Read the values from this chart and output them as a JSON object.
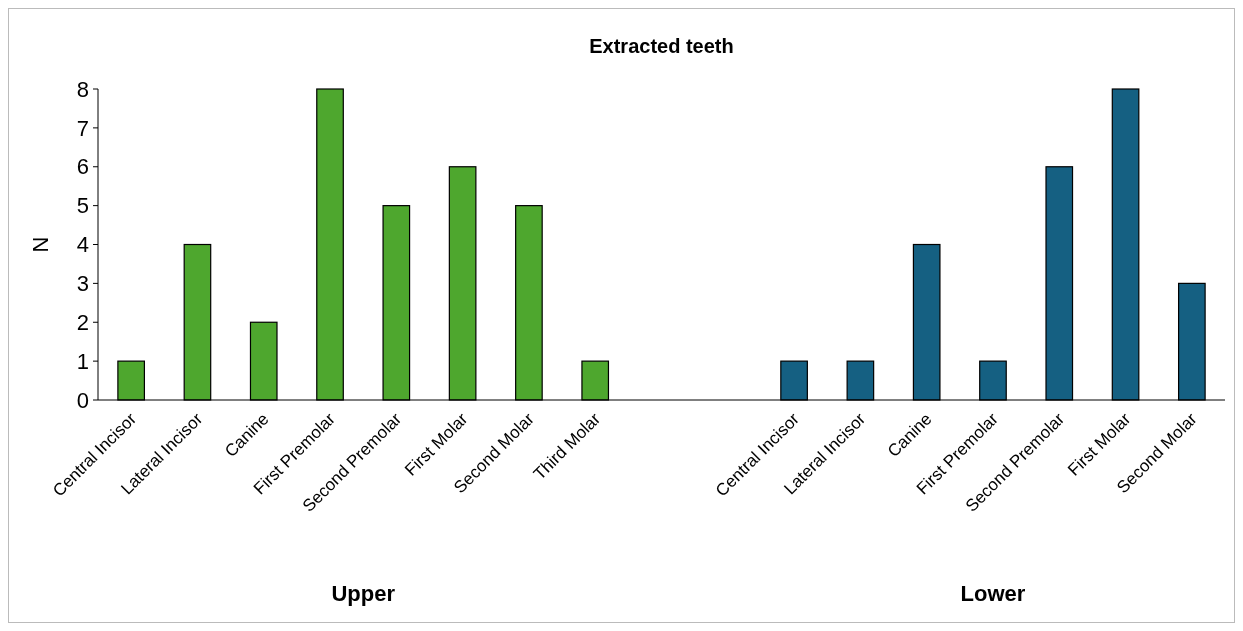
{
  "chart_data": {
    "type": "bar",
    "title": "Extracted teeth",
    "ylabel": "N",
    "categories": [
      "Central Incisor",
      "Lateral Incisor",
      "Canine",
      "First Premolar",
      "Second Premolar",
      "First Molar",
      "Second Molar",
      "Third Molar",
      null,
      null,
      "Central Incisor",
      "Lateral Incisor",
      "Canine",
      "First Premolar",
      "Second Premolar",
      "First Molar",
      "Second Molar"
    ],
    "values": [
      1,
      4,
      2,
      8,
      5,
      6,
      5,
      1,
      null,
      null,
      1,
      1,
      4,
      1,
      6,
      8,
      3
    ],
    "colors": [
      "#4ea72e",
      "#4ea72e",
      "#4ea72e",
      "#4ea72e",
      "#4ea72e",
      "#4ea72e",
      "#4ea72e",
      "#4ea72e",
      null,
      null,
      "#156082",
      "#156082",
      "#156082",
      "#156082",
      "#156082",
      "#156082",
      "#156082"
    ],
    "ylim": [
      0,
      8
    ],
    "yticks": [
      0,
      1,
      2,
      3,
      4,
      5,
      6,
      7,
      8
    ],
    "grid": false,
    "annotations": [
      "Upper",
      "Lower"
    ]
  }
}
